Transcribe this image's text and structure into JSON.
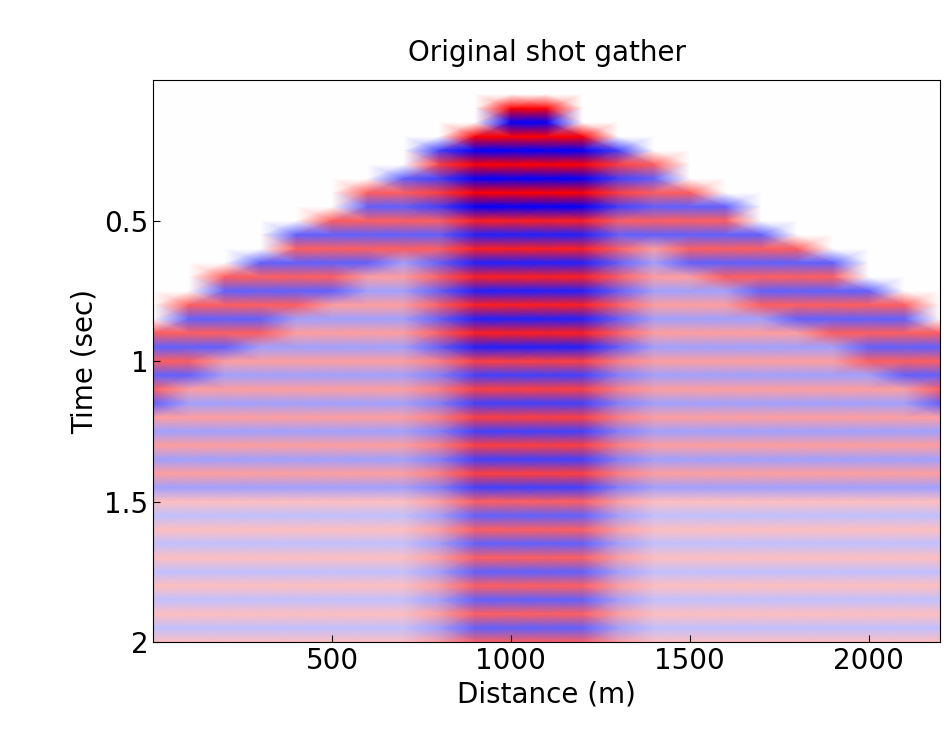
{
  "chart_data": {
    "type": "heatmap",
    "title": "Original shot gather",
    "x_label": "Distance (m)",
    "y_label": "Time (sec)",
    "x": [
      0,
      100,
      200,
      300,
      400,
      500,
      600,
      700,
      800,
      900,
      1000,
      1100,
      1200,
      1300,
      1400,
      1500,
      1600,
      1700,
      1800,
      1900,
      2000,
      2100,
      2200
    ],
    "y": [
      0,
      0.05,
      0.1,
      0.15,
      0.2,
      0.25,
      0.3,
      0.35,
      0.4,
      0.45,
      0.5,
      0.55,
      0.6,
      0.65,
      0.7,
      0.75,
      0.8,
      0.85,
      0.9,
      0.95,
      1.0,
      1.05,
      1.1,
      1.15,
      1.2,
      1.25,
      1.3,
      1.35,
      1.4,
      1.45,
      1.5,
      1.55,
      1.6,
      1.65,
      1.7,
      1.75,
      1.8,
      1.85,
      1.9,
      1.95,
      2.0
    ],
    "cells": [
      [
        0,
        0,
        0,
        0,
        0,
        0,
        0,
        0,
        0,
        0,
        0,
        0,
        0,
        0,
        0,
        0,
        0,
        0,
        0,
        0,
        0,
        0,
        0
      ],
      [
        0,
        0,
        0,
        0,
        0,
        0,
        0,
        0,
        0,
        0,
        0,
        0,
        0,
        0,
        0,
        0,
        0,
        0,
        0,
        0,
        0,
        0,
        0
      ],
      [
        0,
        0,
        0,
        0,
        0,
        0,
        0,
        0,
        0,
        0,
        8,
        8,
        0,
        0,
        0,
        0,
        0,
        0,
        0,
        0,
        0,
        0,
        0
      ],
      [
        0,
        0,
        0,
        0,
        0,
        0,
        0,
        0,
        0,
        0,
        -8,
        -8,
        0,
        0,
        0,
        0,
        0,
        0,
        0,
        0,
        0,
        0,
        0
      ],
      [
        0,
        0,
        0,
        0,
        0,
        0,
        0,
        0,
        0,
        8,
        8,
        8,
        8,
        0,
        0,
        0,
        0,
        0,
        0,
        0,
        0,
        0,
        0
      ],
      [
        0,
        0,
        0,
        0,
        0,
        0,
        0,
        0,
        -6,
        -8,
        -8,
        -8,
        -8,
        -6,
        0,
        0,
        0,
        0,
        0,
        0,
        0,
        0,
        0
      ],
      [
        0,
        0,
        0,
        0,
        0,
        0,
        0,
        0,
        6,
        8,
        8,
        8,
        8,
        6,
        5,
        0,
        0,
        0,
        0,
        0,
        0,
        0,
        0
      ],
      [
        0,
        0,
        0,
        0,
        0,
        0,
        0,
        -5,
        -6,
        -8,
        -8,
        -8,
        -8,
        -6,
        -5,
        0,
        0,
        0,
        0,
        0,
        0,
        0,
        0
      ],
      [
        0,
        0,
        0,
        0,
        0,
        0,
        5,
        5,
        6,
        8,
        8,
        8,
        8,
        6,
        5,
        5,
        0,
        0,
        0,
        0,
        0,
        0,
        0
      ],
      [
        0,
        0,
        0,
        0,
        0,
        0,
        -5,
        -5,
        -6,
        -8,
        -8,
        -8,
        -8,
        -6,
        -5,
        -5,
        -5,
        0,
        0,
        0,
        0,
        0,
        0
      ],
      [
        0,
        0,
        0,
        0,
        0,
        5,
        5,
        5,
        5,
        7,
        7,
        7,
        7,
        5,
        5,
        5,
        5,
        0,
        0,
        0,
        0,
        0,
        0
      ],
      [
        0,
        0,
        0,
        0,
        -5,
        -5,
        -5,
        -5,
        -5,
        -7,
        -7,
        -7,
        -7,
        -5,
        -5,
        -5,
        -5,
        -5,
        0,
        0,
        0,
        0,
        0
      ],
      [
        0,
        0,
        0,
        0,
        5,
        5,
        5,
        5,
        5,
        7,
        7,
        7,
        7,
        5,
        3,
        5,
        5,
        5,
        5,
        0,
        0,
        0,
        0
      ],
      [
        0,
        0,
        0,
        -5,
        -5,
        -5,
        -5,
        -3,
        -5,
        -7,
        -7,
        -7,
        -7,
        -5,
        -3,
        -5,
        -5,
        -5,
        -5,
        -5,
        0,
        0,
        0
      ],
      [
        0,
        0,
        5,
        5,
        5,
        5,
        3,
        3,
        5,
        7,
        7,
        7,
        7,
        5,
        3,
        3,
        5,
        5,
        5,
        5,
        0,
        0,
        0
      ],
      [
        0,
        0,
        -5,
        -5,
        -5,
        -5,
        -3,
        -3,
        -5,
        -7,
        -7,
        -7,
        -7,
        -5,
        -3,
        -3,
        -3,
        -5,
        -5,
        -5,
        -5,
        0,
        0
      ],
      [
        0,
        5,
        5,
        5,
        5,
        3,
        3,
        3,
        5,
        7,
        7,
        7,
        7,
        5,
        3,
        3,
        3,
        5,
        5,
        5,
        5,
        5,
        0
      ],
      [
        0,
        -5,
        -5,
        -5,
        -3,
        -3,
        -3,
        -3,
        -5,
        -7,
        -7,
        -7,
        -7,
        -5,
        -3,
        -3,
        -3,
        -3,
        -5,
        -5,
        -5,
        -5,
        0
      ],
      [
        5,
        5,
        5,
        5,
        3,
        3,
        3,
        3,
        5,
        7,
        7,
        7,
        7,
        5,
        3,
        3,
        3,
        3,
        3,
        5,
        5,
        5,
        5
      ],
      [
        -5,
        -5,
        -5,
        -3,
        -3,
        -3,
        -3,
        -3,
        -5,
        -7,
        -7,
        -7,
        -7,
        -5,
        -3,
        -3,
        -3,
        -3,
        -3,
        -3,
        -5,
        -5,
        -5
      ],
      [
        5,
        5,
        3,
        3,
        3,
        3,
        3,
        3,
        4,
        6,
        6,
        6,
        6,
        4,
        3,
        3,
        3,
        3,
        3,
        3,
        5,
        5,
        5
      ],
      [
        -5,
        -5,
        -3,
        -3,
        -3,
        -3,
        -3,
        -3,
        -4,
        -6,
        -6,
        -6,
        -6,
        -4,
        -3,
        -3,
        -3,
        -3,
        -3,
        -3,
        -3,
        -5,
        -5
      ],
      [
        5,
        3,
        3,
        3,
        3,
        3,
        3,
        3,
        4,
        6,
        6,
        6,
        6,
        4,
        3,
        3,
        3,
        3,
        3,
        3,
        3,
        3,
        5
      ],
      [
        -5,
        -3,
        -3,
        -3,
        -3,
        -3,
        -3,
        -3,
        -4,
        -6,
        -6,
        -6,
        -6,
        -4,
        -3,
        -3,
        -3,
        -3,
        -3,
        -3,
        -3,
        -3,
        -5
      ],
      [
        3,
        3,
        3,
        3,
        3,
        3,
        3,
        3,
        4,
        6,
        6,
        6,
        6,
        4,
        3,
        3,
        3,
        3,
        3,
        3,
        3,
        3,
        3
      ],
      [
        -3,
        -3,
        -3,
        -3,
        -3,
        -3,
        -3,
        -3,
        -4,
        -6,
        -6,
        -6,
        -6,
        -4,
        -3,
        -3,
        -3,
        -3,
        -3,
        -3,
        -3,
        -3,
        -3
      ],
      [
        3,
        3,
        3,
        3,
        3,
        3,
        3,
        3,
        4,
        6,
        6,
        6,
        6,
        4,
        3,
        3,
        3,
        3,
        3,
        3,
        3,
        3,
        3
      ],
      [
        -3,
        -3,
        -3,
        -3,
        -3,
        -3,
        -3,
        -3,
        -4,
        -6,
        -6,
        -6,
        -6,
        -4,
        -3,
        -3,
        -3,
        -3,
        -3,
        -3,
        -3,
        -3,
        -3
      ],
      [
        3,
        3,
        3,
        3,
        3,
        3,
        3,
        3,
        4,
        6,
        6,
        6,
        6,
        4,
        3,
        3,
        3,
        3,
        3,
        3,
        3,
        3,
        3
      ],
      [
        -3,
        -3,
        -3,
        -3,
        -3,
        -3,
        -3,
        -3,
        -4,
        -6,
        -6,
        -6,
        -6,
        -4,
        -3,
        -3,
        -3,
        -3,
        -3,
        -3,
        -3,
        -3,
        -3
      ],
      [
        2,
        2,
        2,
        2,
        2,
        2,
        2,
        2,
        3,
        5,
        5,
        5,
        5,
        3,
        2,
        2,
        2,
        2,
        2,
        2,
        2,
        2,
        2
      ],
      [
        -2,
        -2,
        -2,
        -2,
        -2,
        -2,
        -2,
        -2,
        -3,
        -5,
        -5,
        -5,
        -5,
        -3,
        -2,
        -2,
        -2,
        -2,
        -2,
        -2,
        -2,
        -2,
        -2
      ],
      [
        2,
        2,
        2,
        2,
        2,
        2,
        2,
        2,
        3,
        5,
        5,
        5,
        5,
        3,
        2,
        2,
        2,
        2,
        2,
        2,
        2,
        2,
        2
      ],
      [
        -2,
        -2,
        -2,
        -2,
        -2,
        -2,
        -2,
        -2,
        -3,
        -5,
        -5,
        -5,
        -5,
        -3,
        -2,
        -2,
        -2,
        -2,
        -2,
        -2,
        -2,
        -2,
        -2
      ],
      [
        2,
        2,
        2,
        2,
        2,
        2,
        2,
        2,
        3,
        5,
        5,
        5,
        5,
        3,
        2,
        2,
        2,
        2,
        2,
        2,
        2,
        2,
        2
      ],
      [
        -2,
        -2,
        -2,
        -2,
        -2,
        -2,
        -2,
        -2,
        -3,
        -5,
        -5,
        -5,
        -5,
        -3,
        -2,
        -2,
        -2,
        -2,
        -2,
        -2,
        -2,
        -2,
        -2
      ],
      [
        2,
        2,
        2,
        2,
        2,
        2,
        2,
        2,
        3,
        5,
        5,
        5,
        5,
        3,
        2,
        2,
        2,
        2,
        2,
        2,
        2,
        2,
        2
      ],
      [
        -2,
        -2,
        -2,
        -2,
        -2,
        -2,
        -2,
        -2,
        -3,
        -5,
        -5,
        -5,
        -5,
        -3,
        -2,
        -2,
        -2,
        -2,
        -2,
        -2,
        -2,
        -2,
        -2
      ],
      [
        2,
        2,
        2,
        2,
        2,
        2,
        2,
        2,
        3,
        5,
        5,
        5,
        5,
        3,
        2,
        2,
        2,
        2,
        2,
        2,
        2,
        2,
        2
      ],
      [
        -2,
        -2,
        -2,
        -2,
        -2,
        -2,
        -2,
        -2,
        -3,
        -5,
        -5,
        -5,
        -5,
        -3,
        -2,
        -2,
        -2,
        -2,
        -2,
        -2,
        -2,
        -2,
        -2
      ],
      [
        2,
        2,
        2,
        2,
        2,
        2,
        2,
        2,
        3,
        5,
        5,
        5,
        5,
        3,
        2,
        2,
        2,
        2,
        2,
        2,
        2,
        2,
        2
      ]
    ],
    "xlim": [
      0,
      2200
    ],
    "ylim": [
      2,
      0
    ],
    "xticks": [
      500,
      1000,
      1500,
      2000
    ],
    "yticks": [
      0.5,
      1,
      1.5,
      2
    ]
  }
}
